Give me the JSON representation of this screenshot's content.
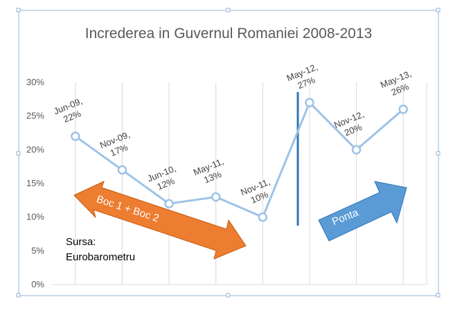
{
  "chart_data": {
    "type": "line",
    "title": "Increderea in Guvernul Romaniei 2008-2013",
    "xlabel": "",
    "ylabel": "",
    "ylim": [
      0,
      30
    ],
    "yticks": [
      "0%",
      "5%",
      "10%",
      "15%",
      "20%",
      "25%",
      "30%"
    ],
    "grid": "vertical",
    "legend": "none",
    "categories": [
      "Jun-09",
      "Nov-09",
      "Jun-10",
      "May-11",
      "Nov-11",
      "May-12",
      "Nov-12",
      "May-13"
    ],
    "series": [
      {
        "values": [
          22,
          17,
          12,
          13,
          10,
          27,
          20,
          26
        ],
        "color": "#9DC3E6"
      }
    ],
    "data_labels": [
      {
        "line1": "Jun-09,",
        "line2": "22%"
      },
      {
        "line1": "Nov-09,",
        "line2": "17%"
      },
      {
        "line1": "Jun-10,",
        "line2": "12%"
      },
      {
        "line1": "May-11,",
        "line2": "13%"
      },
      {
        "line1": "Nov-11,",
        "line2": "10%"
      },
      {
        "line1": "May-12,",
        "line2": "27%"
      },
      {
        "line1": "Nov-12,",
        "line2": "20%"
      },
      {
        "line1": "May-13,",
        "line2": "26%"
      }
    ],
    "annotations": {
      "left_arrow": {
        "text": "Boc 1 + Boc 2",
        "color": "#ED7D31"
      },
      "right_arrow": {
        "text": "Ponta",
        "color": "#5B9BD5"
      },
      "divider_color": "#2E75B6",
      "source_line1": "Sursa:",
      "source_line2": "Eurobarometru"
    }
  }
}
